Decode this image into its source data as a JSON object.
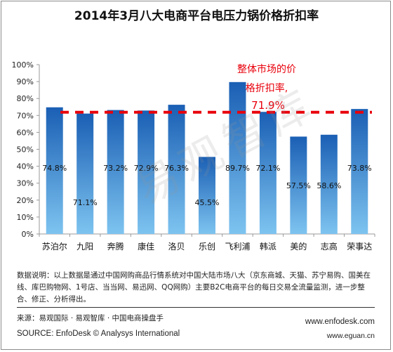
{
  "title": "2014年3月八大电商平台电压力锅价格折扣率",
  "chart_data": {
    "type": "bar",
    "title": "2014年3月八大电商平台电压力锅价格折扣率",
    "categories": [
      "苏泊尔",
      "九阳",
      "奔腾",
      "康佳",
      "洛贝",
      "乐创",
      "飞利浦",
      "韩派",
      "美的",
      "志高",
      "荣事达"
    ],
    "values": [
      74.8,
      71.1,
      73.2,
      72.9,
      76.3,
      45.5,
      89.7,
      72.1,
      57.5,
      58.6,
      73.8
    ],
    "value_labels": [
      "74.8%",
      "71.1%",
      "73.2%",
      "72.9%",
      "76.3%",
      "45.5%",
      "89.7%",
      "72.1%",
      "57.5%",
      "58.6%",
      "73.8%"
    ],
    "ylim": [
      0,
      100
    ],
    "yticks": [
      "0%",
      "10%",
      "20%",
      "30%",
      "40%",
      "50%",
      "60%",
      "70%",
      "80%",
      "90%",
      "100%"
    ],
    "xlabel": "",
    "ylabel": "",
    "grid": false,
    "reference_line": {
      "value": 71.9,
      "label_lines": [
        "整体市场的价",
        "格折扣率,"
      ],
      "value_label": "71.9%",
      "color": "#e8000b"
    },
    "bar_color_top": "#1a5fb4",
    "bar_color_bottom": "#7ec4f0"
  },
  "footnote": {
    "note": "数据说明：以上数据是通过中国网购商品行情系统对中国大陆市场八大（京东商城、天猫、苏宁易购、国美在线、库巴购物网、1号店、当当网、易迅网、QQ网购）主要B2C电商平台的每日交易全流量监测，进一步整合、修正、分析得出。",
    "source_cn": "来源：易观国际 · 易观智库 · 中国电商操盘手",
    "source_en": "SOURCE: EnfoDesk © Analysys International",
    "url1": "www.enfodesk.com",
    "url2": "www.eguan.cn"
  },
  "watermark": "易观智库"
}
